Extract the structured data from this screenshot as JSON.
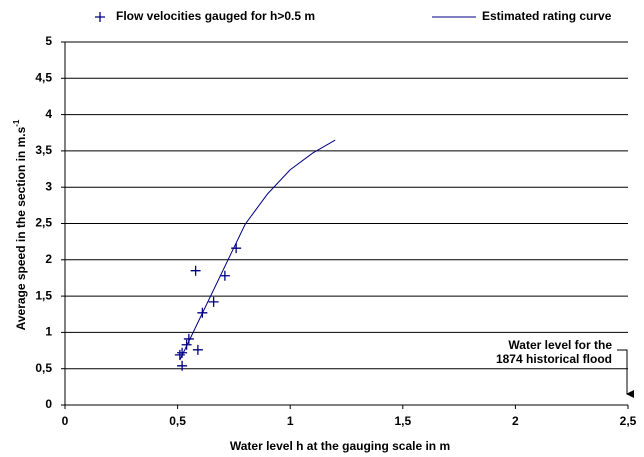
{
  "chart_data": {
    "type": "scatter",
    "xlabel": "Water level h at the gauging scale in m",
    "ylabel": [
      "Average speed in the section in m.s",
      "-1"
    ],
    "annotation": [
      "Water level for the",
      "1874 historical flood"
    ],
    "xlim": [
      0,
      2.5
    ],
    "ylim": [
      0,
      5
    ],
    "xticks": [
      0,
      {
        "value": 0.5,
        "label": "0,5"
      },
      1,
      {
        "value": 1.5,
        "label": "1,5"
      },
      2,
      {
        "value": 2.5,
        "label": "2,5"
      }
    ],
    "yticks": [
      0,
      {
        "value": 0.5,
        "label": "0,5"
      },
      1,
      {
        "value": 1.5,
        "label": "1,5"
      },
      2,
      {
        "value": 2.5,
        "label": "2,5"
      },
      3,
      {
        "value": 3.5,
        "label": "3,5"
      },
      4,
      {
        "value": 4.5,
        "label": "4,5"
      },
      5
    ],
    "grid": true,
    "series": [
      {
        "name": "Flow velocities gauged for h>0.5 m",
        "color": "#000080",
        "kind": "marker",
        "x": [
          0.51,
          0.52,
          0.52,
          0.54,
          0.55,
          0.58,
          0.59,
          0.61,
          0.66,
          0.71,
          0.76
        ],
        "values": [
          0.69,
          0.72,
          0.54,
          0.83,
          0.91,
          1.85,
          0.76,
          1.27,
          1.42,
          1.78,
          2.16
        ]
      },
      {
        "name": "Estimated rating curve",
        "color": "#000080",
        "kind": "line",
        "x": [
          0.51,
          0.8,
          0.9,
          1.0,
          1.1,
          1.2
        ],
        "values": [
          0.62,
          2.49,
          2.91,
          3.24,
          3.47,
          3.65
        ]
      }
    ]
  }
}
